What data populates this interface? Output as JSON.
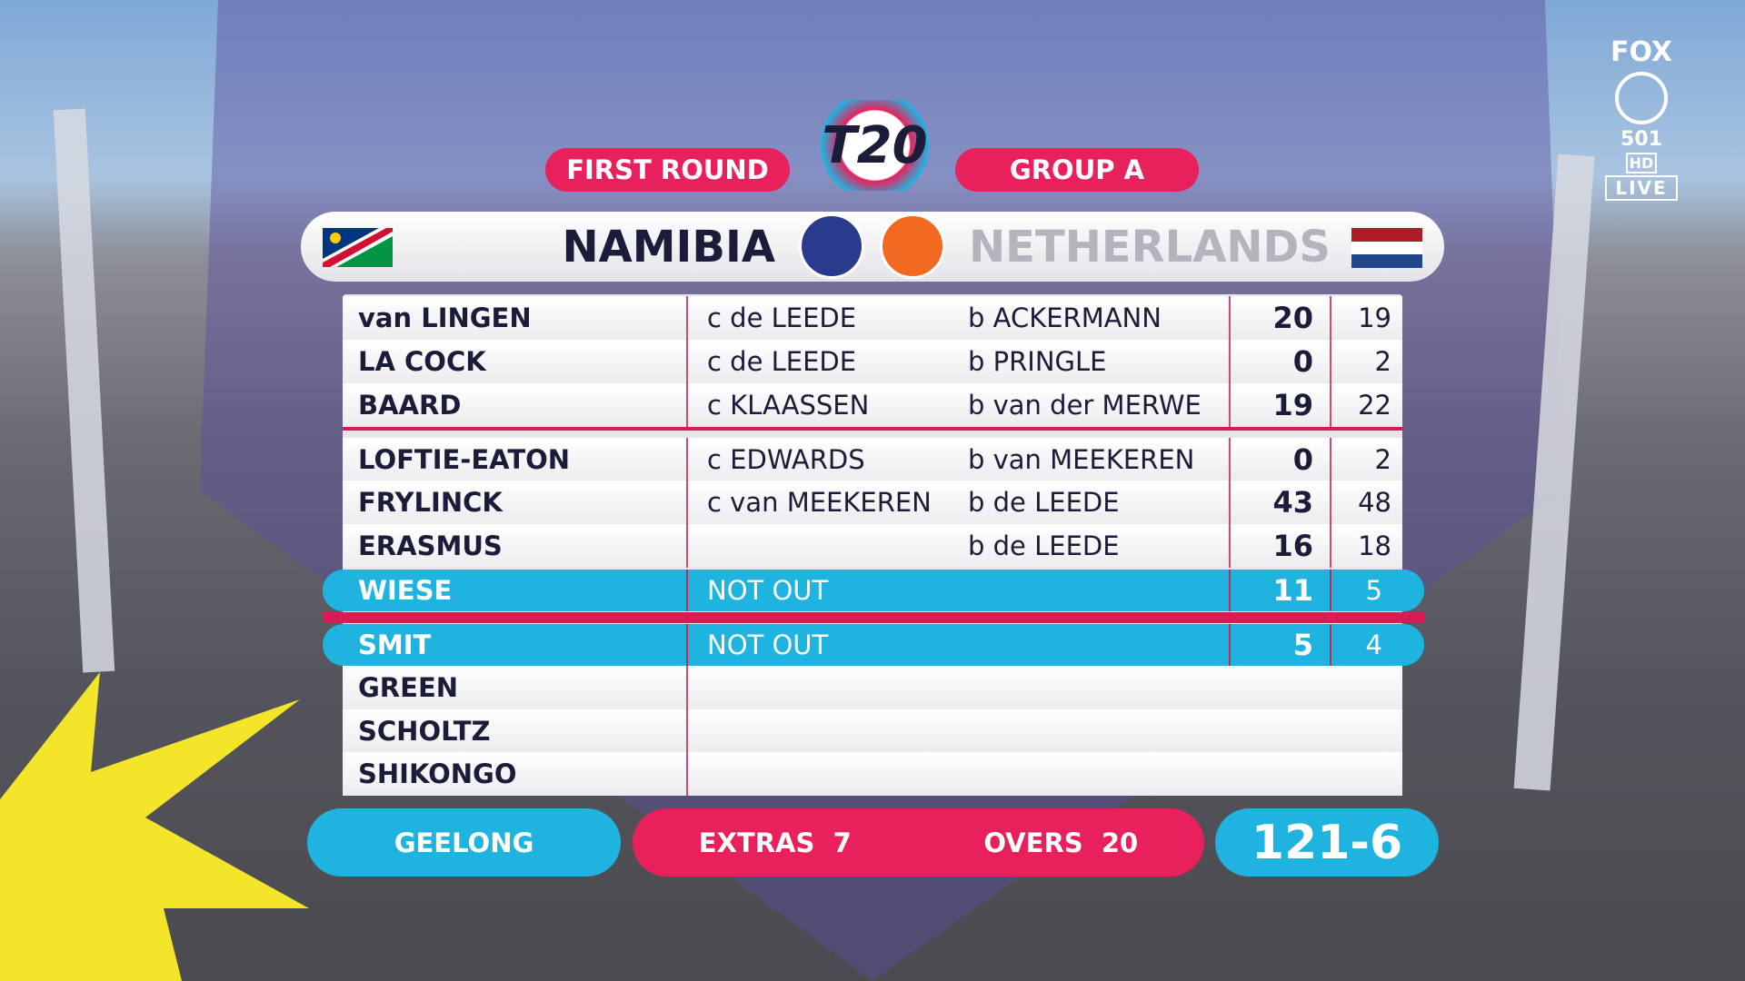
{
  "header": {
    "round": "FIRST ROUND",
    "group": "GROUP A",
    "logo": "T20",
    "team_batting": "NAMIBIA",
    "team_bowling": "NETHERLANDS"
  },
  "broadcaster": {
    "name": "FOX",
    "channel": "501",
    "quality": "HD",
    "status": "LIVE"
  },
  "table": {
    "rows": [
      {
        "batter": "van LINGEN",
        "fielder": "c de LEEDE",
        "bowler": "b ACKERMANN",
        "runs": 20,
        "balls": 19
      },
      {
        "batter": "LA COCK",
        "fielder": "c de LEEDE",
        "bowler": "b PRINGLE",
        "runs": 0,
        "balls": 2
      },
      {
        "batter": "BAARD",
        "fielder": "c KLAASSEN",
        "bowler": "b van der MERWE",
        "runs": 19,
        "balls": 22
      },
      {
        "batter": "LOFTIE-EATON",
        "fielder": "c EDWARDS",
        "bowler": "b van MEEKEREN",
        "runs": 0,
        "balls": 2
      },
      {
        "batter": "FRYLINCK",
        "fielder": "c van MEEKEREN",
        "bowler": "b de LEEDE",
        "runs": 43,
        "balls": 48
      },
      {
        "batter": "ERASMUS",
        "bowler": "b de LEEDE",
        "runs": 16,
        "balls": 18
      },
      {
        "batter": "WIESE",
        "dismissal": "NOT OUT",
        "runs": 11,
        "balls": 5
      },
      {
        "batter": "SMIT",
        "dismissal": "NOT OUT",
        "runs": 5,
        "balls": 4
      },
      {
        "batter": "GREEN"
      },
      {
        "batter": "SCHOLTZ"
      },
      {
        "batter": "SHIKONGO"
      }
    ]
  },
  "footer": {
    "venue": "GEELONG",
    "extras_label": "EXTRAS",
    "extras": 7,
    "overs_label": "OVERS",
    "overs": 20,
    "total": "121-6"
  }
}
